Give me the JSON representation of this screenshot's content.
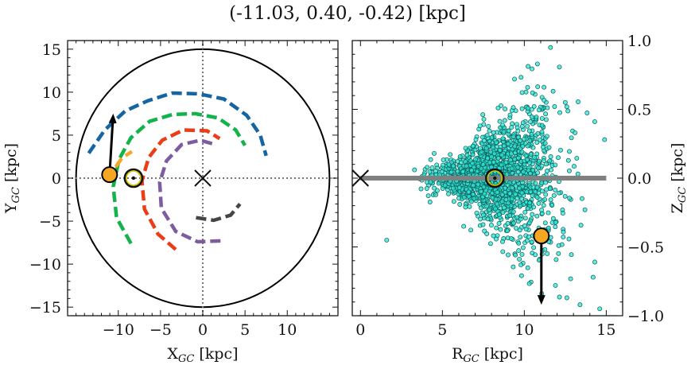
{
  "figure": {
    "title": "(-11.03, 0.40, -0.42) [kpc]"
  },
  "chart_data": [
    {
      "type": "line",
      "panel": "left",
      "xlabel_main": "X",
      "xlabel_sub": "GC",
      "xlabel_unit": " [kpc]",
      "ylabel_main": "Y",
      "ylabel_sub": "GC",
      "ylabel_unit": " [kpc]",
      "xlim": [
        -16,
        16
      ],
      "ylim": [
        -16,
        16
      ],
      "xticks": [
        -10,
        -5,
        0,
        5,
        10
      ],
      "xtick_labels": [
        "−10",
        "−5",
        "0",
        "5",
        "10"
      ],
      "yticks": [
        -15,
        -10,
        -5,
        0,
        5,
        10,
        15
      ],
      "ytick_labels": [
        "−15",
        "−10",
        "−5",
        "0",
        "5",
        "10",
        "15"
      ],
      "boundary_circle_radius": 15,
      "reference_lines": {
        "x": 0,
        "y": 0,
        "style": "dotted"
      },
      "galactic_center": {
        "x": 0,
        "y": 0,
        "marker": "x"
      },
      "sun": {
        "x": -8.2,
        "y": 0,
        "marker": "sun-symbol"
      },
      "object": {
        "x": -11.03,
        "y": 0.4,
        "color": "#F5A623"
      },
      "velocity_arrow": {
        "x0": -11.03,
        "y0": 0.4,
        "x1": -10.6,
        "y1": 7.5
      },
      "spiral_arms": [
        {
          "color": "#1565A3",
          "points": [
            [
              -13.5,
              2.9
            ],
            [
              -11.6,
              5.6
            ],
            [
              -9.2,
              7.8
            ],
            [
              -6.5,
              9.0
            ],
            [
              -3.6,
              9.9
            ],
            [
              -0.5,
              9.8
            ],
            [
              2.5,
              9.2
            ],
            [
              5.2,
              7.3
            ],
            [
              6.8,
              5.0
            ],
            [
              7.5,
              2.6
            ]
          ]
        },
        {
          "color": "#12B34A",
          "points": [
            [
              -8.5,
              -7.6
            ],
            [
              -10.2,
              -4.6
            ],
            [
              -10.6,
              -1.0
            ],
            [
              -9.9,
              2.2
            ],
            [
              -8.5,
              4.7
            ],
            [
              -6.3,
              6.6
            ],
            [
              -3.6,
              7.4
            ],
            [
              -0.9,
              7.5
            ],
            [
              1.8,
              7.0
            ],
            [
              3.9,
              5.6
            ],
            [
              5.0,
              3.8
            ]
          ]
        },
        {
          "color": "#F5A623",
          "points": [
            [
              -10.3,
              1.3
            ],
            [
              -9.6,
              2.3
            ],
            [
              -8.4,
              3.1
            ]
          ]
        },
        {
          "color": "#EB3D17",
          "points": [
            [
              -3.2,
              -8.3
            ],
            [
              -5.3,
              -6.5
            ],
            [
              -6.9,
              -3.6
            ],
            [
              -7.2,
              -0.3
            ],
            [
              -6.4,
              2.4
            ],
            [
              -4.8,
              4.4
            ],
            [
              -2.3,
              5.6
            ],
            [
              0.5,
              5.5
            ],
            [
              2.0,
              4.6
            ]
          ]
        },
        {
          "color": "#7E5CA0",
          "points": [
            [
              2.1,
              -7.3
            ],
            [
              -0.6,
              -7.4
            ],
            [
              -3.2,
              -6.2
            ],
            [
              -4.9,
              -3.5
            ],
            [
              -5.1,
              -0.5
            ],
            [
              -4.3,
              2.0
            ],
            [
              -2.5,
              3.9
            ],
            [
              -0.3,
              4.4
            ],
            [
              1.5,
              3.9
            ]
          ]
        },
        {
          "color": "#454545",
          "points": [
            [
              -0.8,
              -4.6
            ],
            [
              1.3,
              -4.9
            ],
            [
              3.3,
              -4.3
            ],
            [
              4.4,
              -3.0
            ]
          ]
        }
      ]
    },
    {
      "type": "scatter",
      "panel": "right",
      "xlabel_main": "R",
      "xlabel_sub": "GC",
      "xlabel_unit": " [kpc]",
      "ylabel_main": "Z",
      "ylabel_sub": "GC",
      "ylabel_unit": " [kpc]",
      "xlim": [
        -0.5,
        16
      ],
      "ylim": [
        -1.0,
        1.0
      ],
      "xticks": [
        0,
        5,
        10,
        15
      ],
      "xtick_labels": [
        "0",
        "5",
        "10",
        "15"
      ],
      "yticks": [
        -1.0,
        -0.5,
        0.0,
        0.5,
        1.0
      ],
      "ytick_labels": [
        "−1.0",
        "−0.5",
        "0.0",
        "0.5",
        "1.0"
      ],
      "yaxis_side": "right",
      "galactic_plane": {
        "x0": 0,
        "x1": 15,
        "y": 0,
        "color": "#808080"
      },
      "galactic_center": {
        "x": 0,
        "y": 0,
        "marker": "x"
      },
      "sun": {
        "x": 8.2,
        "y": 0,
        "marker": "sun-symbol"
      },
      "object": {
        "x": 11.04,
        "y": -0.42,
        "color": "#F5A623"
      },
      "velocity_arrow": {
        "x0": 11.04,
        "y0": -0.42,
        "x1": 11.04,
        "y1": -0.92
      },
      "point_color": "#2EE6D6",
      "cloud": {
        "description_count": 1600,
        "r_mean": 8.3,
        "r_sd": 1.9,
        "z_sd_inner": 0.06,
        "z_sd_growth": 0.055
      },
      "outliers": [
        [
          1.6,
          -0.45
        ],
        [
          3.3,
          0.06
        ],
        [
          4.5,
          0.18
        ],
        [
          4.6,
          -0.12
        ],
        [
          6.3,
          -0.35
        ],
        [
          6.4,
          0.12
        ],
        [
          7.3,
          0.38
        ],
        [
          8.4,
          0.51
        ],
        [
          9.2,
          -0.44
        ],
        [
          9.4,
          0.72
        ],
        [
          10.5,
          0.62
        ],
        [
          10.8,
          0.83
        ],
        [
          11.4,
          -0.55
        ],
        [
          11.9,
          -0.78
        ],
        [
          12.5,
          0.55
        ],
        [
          12.6,
          -0.87
        ],
        [
          13.1,
          0.33
        ],
        [
          13.4,
          -0.92
        ],
        [
          14.6,
          -0.95
        ],
        [
          14.2,
          -0.72
        ],
        [
          14.9,
          0.28
        ],
        [
          11.6,
          0.95
        ],
        [
          10.2,
          0.66
        ],
        [
          12.1,
          -0.49
        ],
        [
          13.7,
          -0.23
        ],
        [
          14.3,
          -0.61
        ]
      ]
    }
  ]
}
